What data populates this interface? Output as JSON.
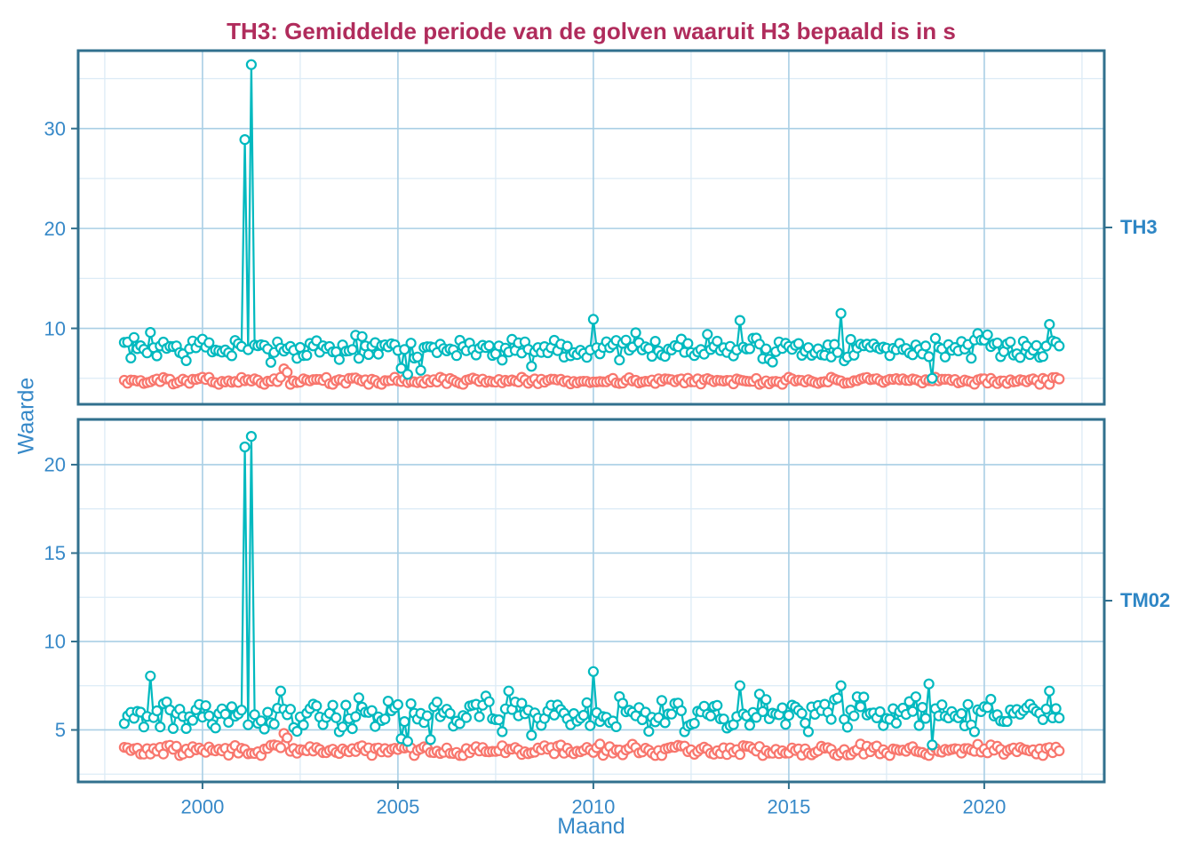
{
  "title": {
    "text": "TH3: Gemiddelde periode van de golven waaruit H3 bepaald is in s",
    "color": "#B02C5C"
  },
  "axes": {
    "y_label": "Waarde",
    "x_label": "Maand",
    "tick_label_color": "#3789C8",
    "axis_line_color": "#31708E"
  },
  "facets": [
    {
      "label": "TH3"
    },
    {
      "label": "TM02"
    }
  ],
  "colors": {
    "background": "#FFFFFF",
    "panel_border": "#31708E",
    "grid_major": "#A9CFE5",
    "grid_minor": "#DCEBF6",
    "tick_text": "#3789C8",
    "axis_title": "#3789C8",
    "facet_label": "#2E86C5",
    "title": "#B02C5C",
    "series_teal": "#00B9BF",
    "series_red": "#F8766D",
    "marker_fill": "#FFFFFF"
  },
  "chart_data": {
    "type": "line",
    "title": "TH3: Gemiddelde periode van de golven waaruit H3 bepaald is in s",
    "xlabel": "Maand",
    "ylabel": "Waarde",
    "legend": "none",
    "grid": "on",
    "x_axis": {
      "unit": "year",
      "frequency": "monthly",
      "start": "1998-01",
      "end": "2021-12",
      "start_year": 1998,
      "n_points": 288,
      "ticks": [
        2000,
        2005,
        2010,
        2015,
        2020
      ],
      "tick_labels": [
        "2000",
        "2005",
        "2010",
        "2015",
        "2020"
      ],
      "minor_ticks": [
        1997.5,
        2002.5,
        2007.5,
        2012.5,
        2017.5,
        2022.5
      ],
      "range": [
        1996.82,
        2023.07
      ]
    },
    "panels": [
      {
        "facet": "TH3",
        "y_ticks": [
          10,
          20,
          30
        ],
        "y_tick_labels": [
          "10",
          "20",
          "30"
        ],
        "y_minor": [
          5,
          15,
          25,
          35
        ],
        "ylim": [
          2.4,
          37.8
        ],
        "series": [
          {
            "name": "red",
            "color": "#F8766D",
            "mean": 4.75,
            "sd": 0.16,
            "seasonal": 0.08,
            "clip": [
              4.4,
              5.1
            ],
            "seed": 13,
            "anomalies": [
              [
                49,
                5.95
              ],
              [
                50,
                5.6
              ]
            ]
          },
          {
            "name": "teal",
            "color": "#00B9BF",
            "mean": 8.0,
            "sd": 0.55,
            "seasonal": 0.3,
            "clip": [
              6.4,
              10.0
            ],
            "seed": 7,
            "anomalies": [
              [
                8,
                9.6
              ],
              [
                37,
                28.9
              ],
              [
                39,
                36.4
              ],
              [
                85,
                6.0
              ],
              [
                87,
                5.4
              ],
              [
                91,
                5.8
              ],
              [
                125,
                6.2
              ],
              [
                144,
                10.9
              ],
              [
                189,
                10.8
              ],
              [
                220,
                11.5
              ],
              [
                248,
                5.0
              ],
              [
                284,
                10.4
              ]
            ]
          }
        ]
      },
      {
        "facet": "TM02",
        "y_ticks": [
          5,
          10,
          15,
          20
        ],
        "y_tick_labels": [
          "5",
          "10",
          "15",
          "20"
        ],
        "y_minor": [
          2.5,
          7.5,
          12.5,
          17.5,
          22.5
        ],
        "ylim": [
          2.06,
          22.56
        ],
        "series": [
          {
            "name": "red",
            "color": "#F8766D",
            "mean": 3.85,
            "sd": 0.14,
            "seasonal": 0.07,
            "clip": [
              3.55,
              4.2
            ],
            "seed": 29,
            "anomalies": [
              [
                49,
                4.8
              ],
              [
                50,
                4.55
              ]
            ]
          },
          {
            "name": "teal",
            "color": "#00B9BF",
            "mean": 5.9,
            "sd": 0.45,
            "seasonal": 0.25,
            "clip": [
              4.9,
              7.2
            ],
            "seed": 21,
            "anomalies": [
              [
                8,
                8.05
              ],
              [
                37,
                21.0
              ],
              [
                39,
                21.6
              ],
              [
                85,
                4.5
              ],
              [
                87,
                4.35
              ],
              [
                94,
                4.45
              ],
              [
                125,
                4.7
              ],
              [
                144,
                8.3
              ],
              [
                189,
                7.5
              ],
              [
                220,
                7.5
              ],
              [
                247,
                7.6
              ],
              [
                248,
                4.15
              ],
              [
                284,
                7.2
              ]
            ]
          }
        ]
      }
    ]
  }
}
